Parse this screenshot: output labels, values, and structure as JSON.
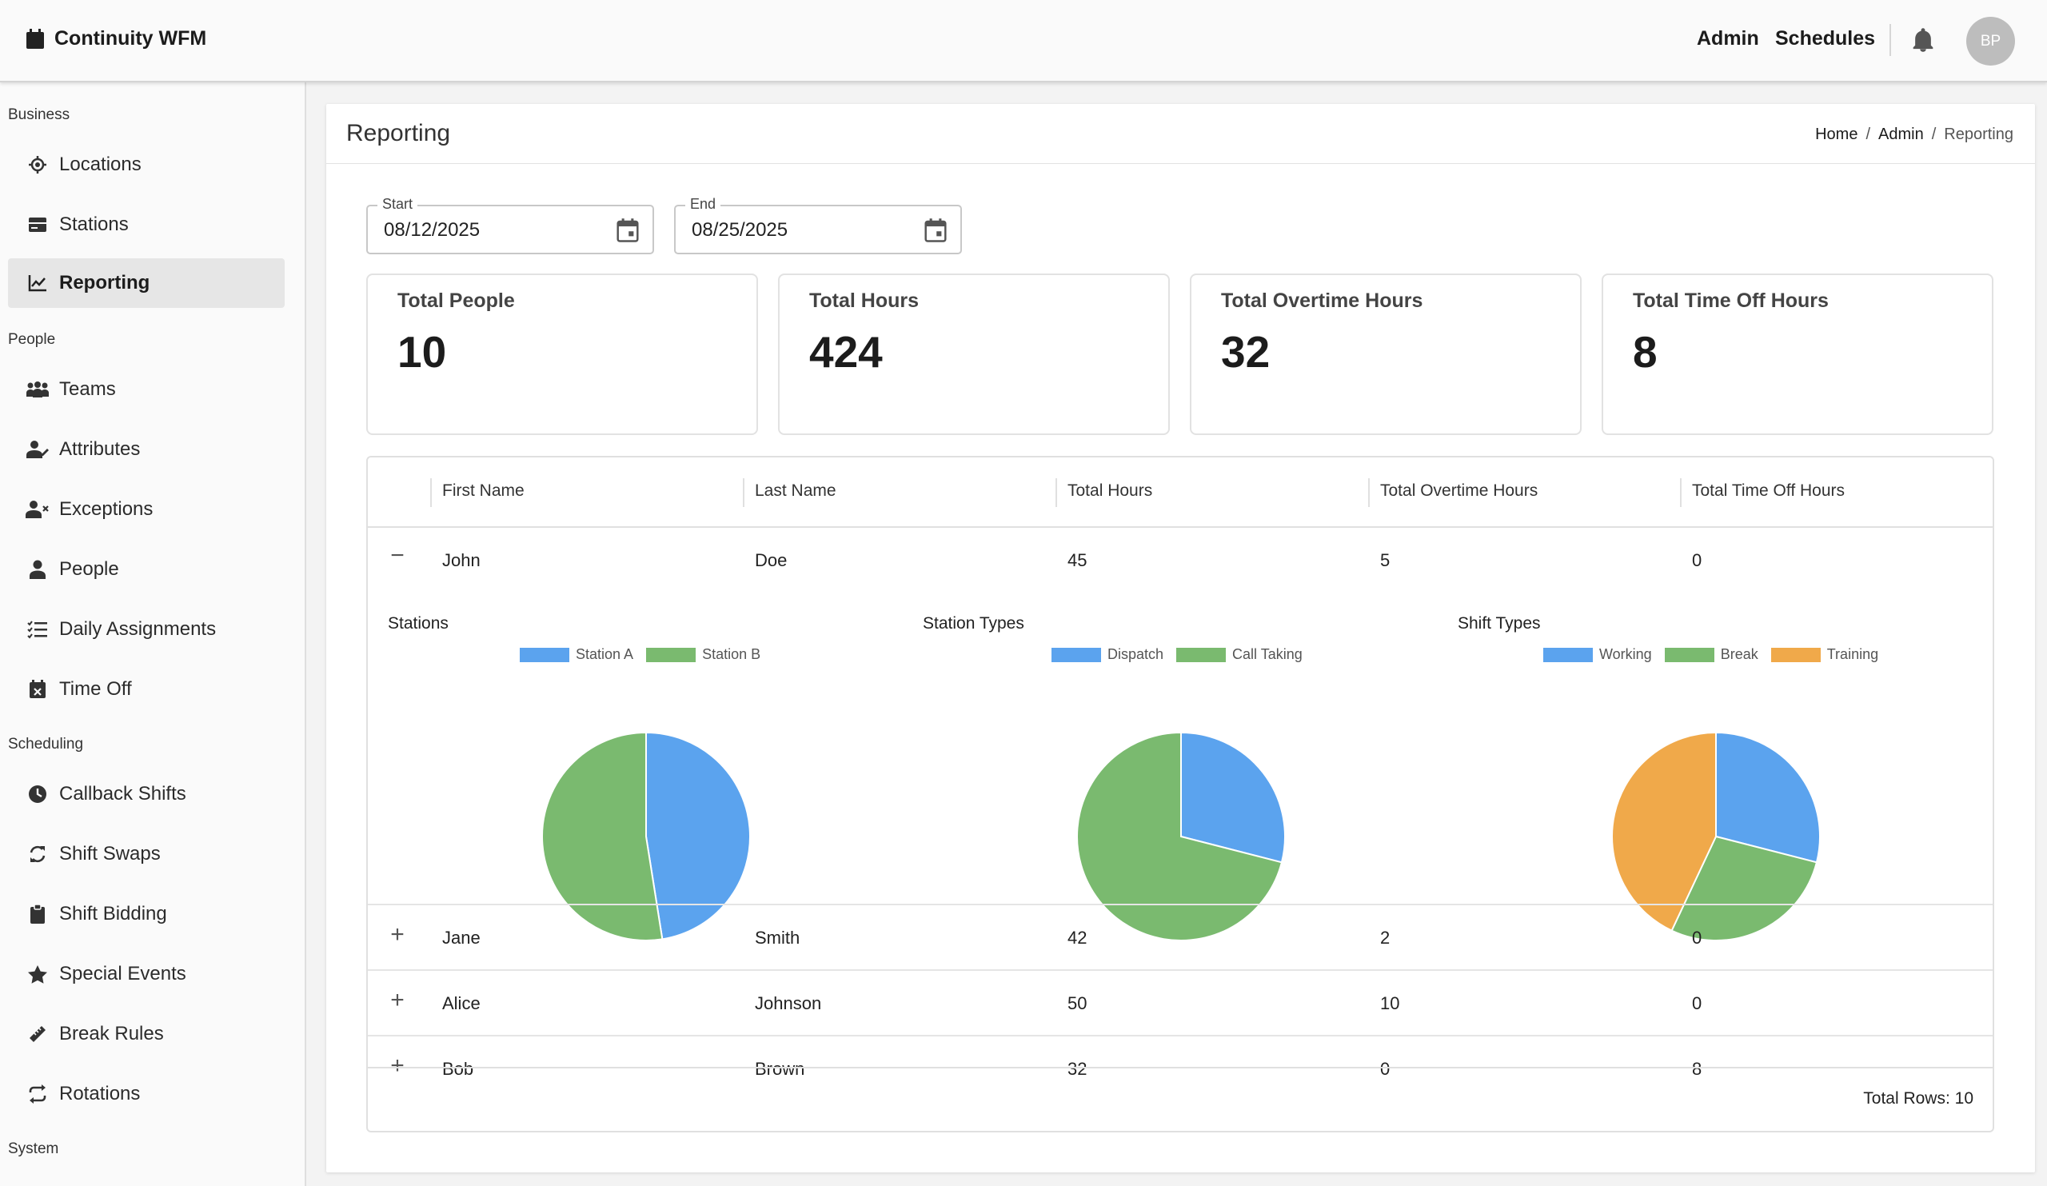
{
  "app": {
    "title": "Continuity WFM"
  },
  "topnav": {
    "admin": "Admin",
    "schedules": "Schedules",
    "avatar_initials": "BP"
  },
  "sidebar": {
    "sections": [
      {
        "label": "Business"
      },
      {
        "label": "People"
      },
      {
        "label": "Scheduling"
      },
      {
        "label": "System"
      }
    ],
    "items": [
      {
        "label": "Locations",
        "icon": "location-icon"
      },
      {
        "label": "Stations",
        "icon": "station-icon"
      },
      {
        "label": "Reporting",
        "icon": "chart-line-icon",
        "active": true
      },
      {
        "label": "Teams",
        "icon": "teams-icon"
      },
      {
        "label": "Attributes",
        "icon": "attributes-icon"
      },
      {
        "label": "Exceptions",
        "icon": "exceptions-icon"
      },
      {
        "label": "People",
        "icon": "person-icon"
      },
      {
        "label": "Daily Assignments",
        "icon": "checklist-icon"
      },
      {
        "label": "Time Off",
        "icon": "calendar-x-icon"
      },
      {
        "label": "Callback Shifts",
        "icon": "clock-icon"
      },
      {
        "label": "Shift Swaps",
        "icon": "swap-icon"
      },
      {
        "label": "Shift Bidding",
        "icon": "clipboard-icon"
      },
      {
        "label": "Special Events",
        "icon": "star-icon"
      },
      {
        "label": "Break Rules",
        "icon": "ruler-icon"
      },
      {
        "label": "Rotations",
        "icon": "rotate-icon"
      }
    ]
  },
  "page": {
    "title": "Reporting",
    "breadcrumb": [
      "Home",
      "Admin",
      "Reporting"
    ],
    "start": {
      "label": "Start",
      "value": "08/12/2025"
    },
    "end": {
      "label": "End",
      "value": "08/25/2025"
    }
  },
  "stats": [
    {
      "title": "Total People",
      "value": "10"
    },
    {
      "title": "Total Hours",
      "value": "424"
    },
    {
      "title": "Total Overtime Hours",
      "value": "32"
    },
    {
      "title": "Total Time Off Hours",
      "value": "8"
    }
  ],
  "table": {
    "columns": [
      "First Name",
      "Last Name",
      "Total Hours",
      "Total Overtime Hours",
      "Total Time Off Hours"
    ],
    "rows": [
      {
        "toggle": "−",
        "first": "John",
        "last": "Doe",
        "hours": "45",
        "overtime": "5",
        "timeoff": "0"
      },
      {
        "toggle": "+",
        "first": "Jane",
        "last": "Smith",
        "hours": "42",
        "overtime": "2",
        "timeoff": "0"
      },
      {
        "toggle": "+",
        "first": "Alice",
        "last": "Johnson",
        "hours": "50",
        "overtime": "10",
        "timeoff": "0"
      },
      {
        "toggle": "+",
        "first": "Bob",
        "last": "Brown",
        "hours": "32",
        "overtime": "0",
        "timeoff": "8"
      }
    ],
    "footer": "Total Rows: 10"
  },
  "chart_data": [
    {
      "type": "pie",
      "title": "Stations",
      "categories": [
        "Station A",
        "Station B"
      ],
      "values": [
        47.5,
        52.5
      ],
      "colors": [
        "#5ba3ee",
        "#7aba6f"
      ]
    },
    {
      "type": "pie",
      "title": "Station Types",
      "categories": [
        "Dispatch",
        "Call Taking"
      ],
      "values": [
        29,
        71
      ],
      "colors": [
        "#5ba3ee",
        "#7aba6f"
      ]
    },
    {
      "type": "pie",
      "title": "Shift Types",
      "categories": [
        "Working",
        "Break",
        "Training"
      ],
      "values": [
        29,
        28,
        43
      ],
      "colors": [
        "#5ba3ee",
        "#7aba6f",
        "#f0a94a"
      ]
    }
  ]
}
